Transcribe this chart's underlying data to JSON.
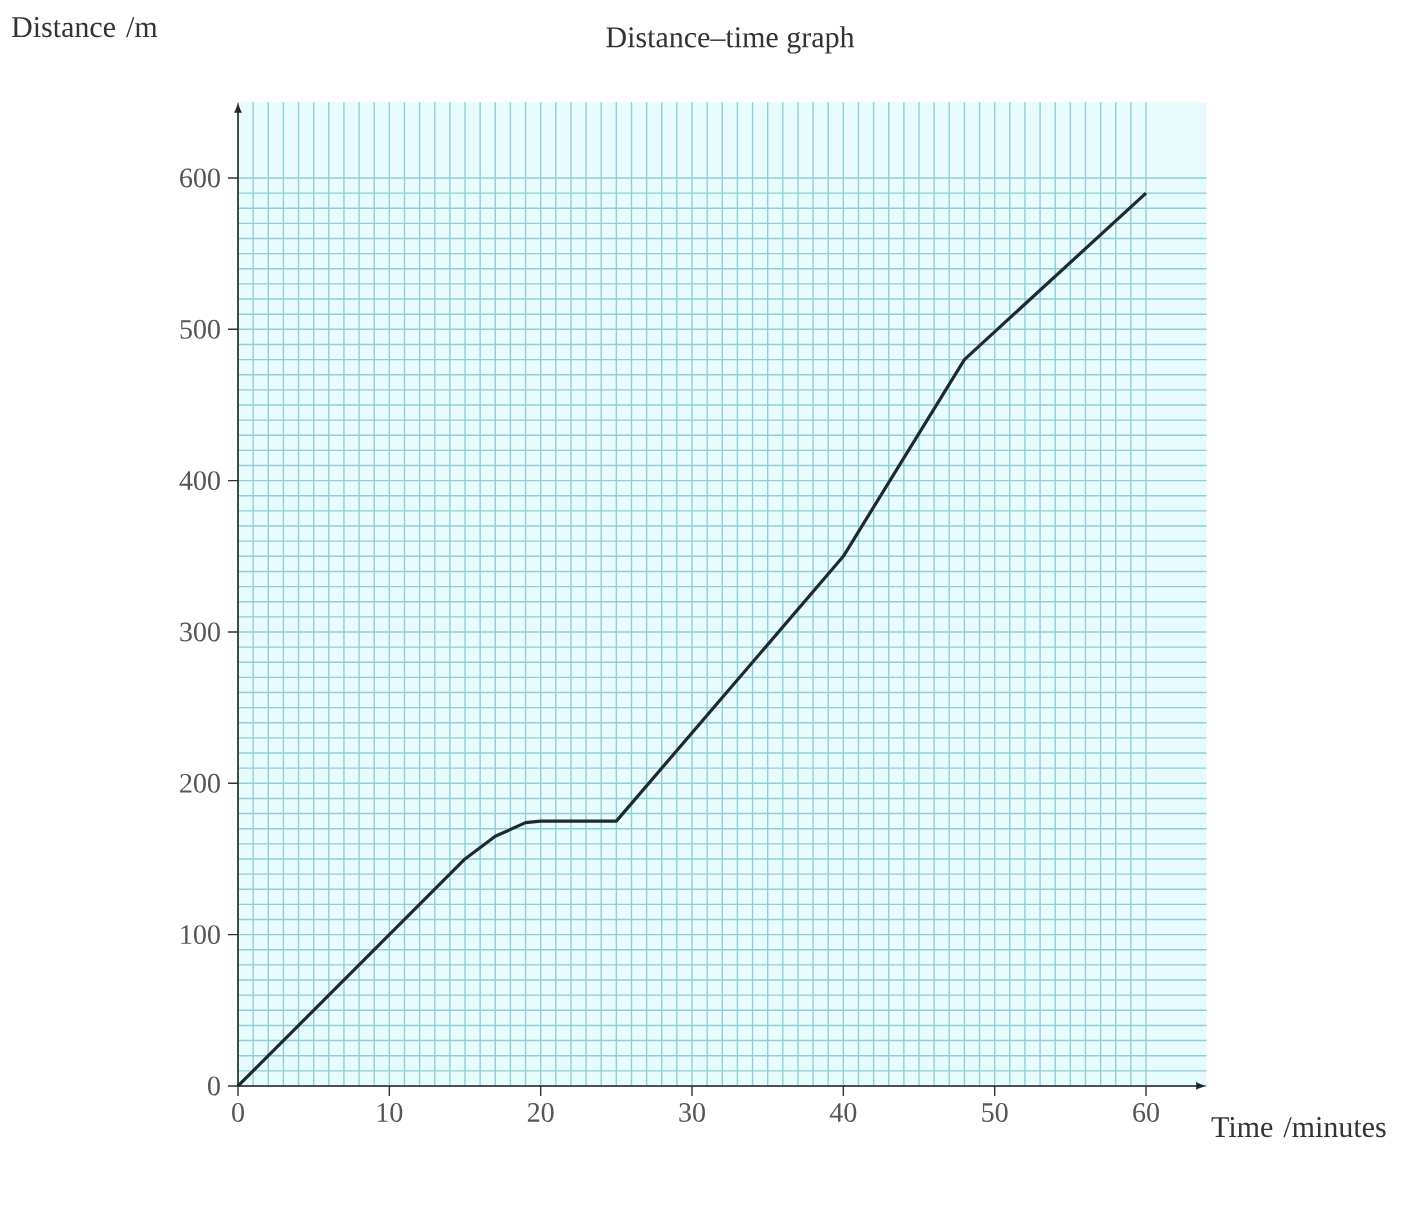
{
  "chart_data": {
    "type": "line",
    "title": "Distance–time graph",
    "xlabel": "Time /minutes",
    "ylabel": "Distance /m",
    "x": [
      0,
      15,
      17,
      19,
      20,
      25,
      40,
      48,
      60
    ],
    "series": [
      {
        "color": "#1f2a30",
        "values": [
          0,
          150,
          165,
          174,
          175,
          175,
          350,
          480,
          590
        ]
      }
    ],
    "xlim": [
      0,
      64
    ],
    "ylim": [
      0,
      650
    ],
    "xticks": [
      0,
      10,
      20,
      30,
      40,
      50,
      60
    ],
    "yticks": [
      0,
      100,
      200,
      300,
      400,
      500,
      600
    ],
    "grid": true,
    "line_style": "solid",
    "marker": "none"
  }
}
